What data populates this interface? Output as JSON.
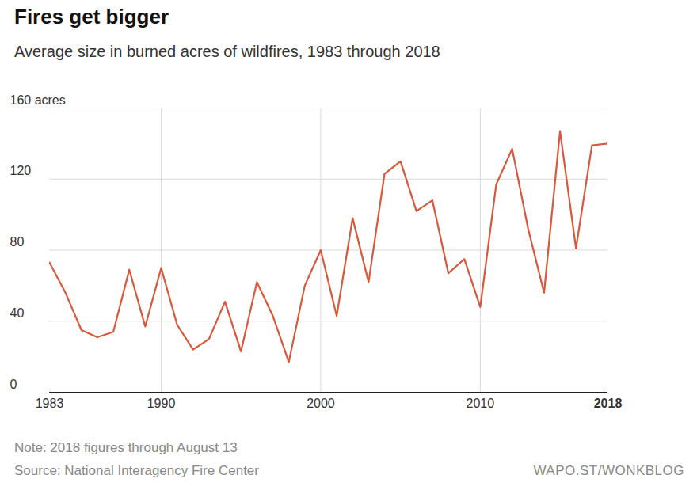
{
  "chart_data": {
    "type": "line",
    "title": "Fires get bigger",
    "subtitle": "Average size in burned acres of wildfires, 1983 through 2018",
    "note": "Note: 2018 figures through August 13",
    "source": "Source: National Interagency Fire Center",
    "credit": "WAPO.ST/WONKBLOG",
    "x": [
      1983,
      1984,
      1985,
      1986,
      1987,
      1988,
      1989,
      1990,
      1991,
      1992,
      1993,
      1994,
      1995,
      1996,
      1997,
      1998,
      1999,
      2000,
      2001,
      2002,
      2003,
      2004,
      2005,
      2006,
      2007,
      2008,
      2009,
      2010,
      2011,
      2012,
      2013,
      2014,
      2015,
      2016,
      2017,
      2018
    ],
    "values": [
      73,
      56,
      35,
      31,
      34,
      69,
      37,
      70,
      38,
      24,
      30,
      51,
      23,
      62,
      43,
      17,
      60,
      80,
      43,
      98,
      62,
      123,
      130,
      102,
      108,
      67,
      75,
      48,
      117,
      137,
      92,
      56,
      147,
      81,
      139,
      140
    ],
    "color": "#d9573a",
    "xlim": [
      1983,
      2018
    ],
    "xticks": [
      1983,
      1990,
      2000,
      2010,
      2018
    ],
    "ylim": [
      0,
      160
    ],
    "yticks": [
      0,
      40,
      80,
      120,
      {
        "value": 160,
        "label": "160 acres"
      }
    ],
    "grid": true
  }
}
